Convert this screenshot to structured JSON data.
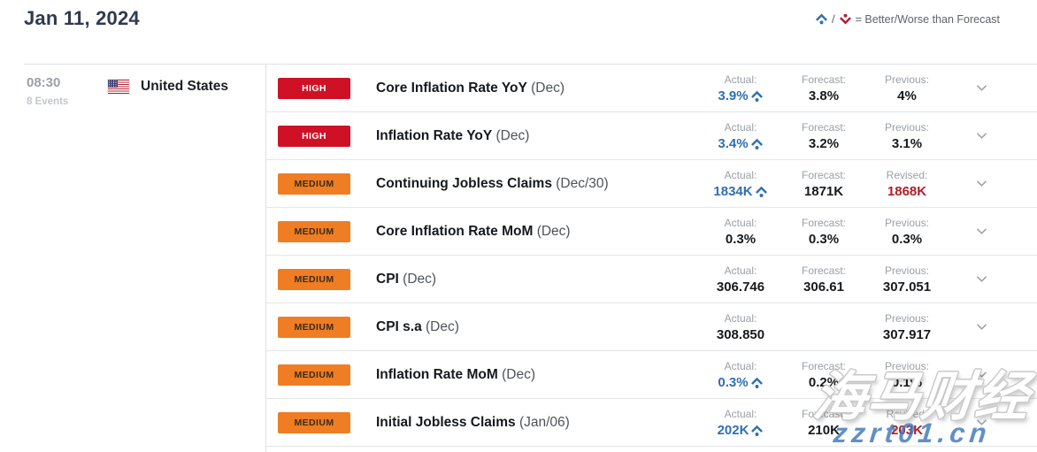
{
  "header": {
    "date": "Jan 11, 2024",
    "legend": {
      "separator": "/",
      "text": "= Better/Worse than Forecast"
    }
  },
  "group": {
    "time": "08:30",
    "events_count": "8 Events",
    "country": "United States"
  },
  "rows": [
    {
      "importance": "HIGH",
      "name": "Core Inflation Rate YoY",
      "period": "(Dec)",
      "values": [
        {
          "label": "Actual:",
          "value": "3.9%",
          "state": "better"
        },
        {
          "label": "Forecast:",
          "value": "3.8%"
        },
        {
          "label": "Previous:",
          "value": "4%"
        }
      ]
    },
    {
      "importance": "HIGH",
      "name": "Inflation Rate YoY",
      "period": "(Dec)",
      "values": [
        {
          "label": "Actual:",
          "value": "3.4%",
          "state": "better"
        },
        {
          "label": "Forecast:",
          "value": "3.2%"
        },
        {
          "label": "Previous:",
          "value": "3.1%"
        }
      ]
    },
    {
      "importance": "MEDIUM",
      "name": "Continuing Jobless Claims",
      "period": "(Dec/30)",
      "values": [
        {
          "label": "Actual:",
          "value": "1834K",
          "state": "better"
        },
        {
          "label": "Forecast:",
          "value": "1871K"
        },
        {
          "label": "Revised:",
          "value": "1868K",
          "state": "revised"
        }
      ]
    },
    {
      "importance": "MEDIUM",
      "name": "Core Inflation Rate MoM",
      "period": "(Dec)",
      "values": [
        {
          "label": "Actual:",
          "value": "0.3%"
        },
        {
          "label": "Forecast:",
          "value": "0.3%"
        },
        {
          "label": "Previous:",
          "value": "0.3%"
        }
      ]
    },
    {
      "importance": "MEDIUM",
      "name": "CPI",
      "period": "(Dec)",
      "values": [
        {
          "label": "Actual:",
          "value": "306.746"
        },
        {
          "label": "Forecast:",
          "value": "306.61"
        },
        {
          "label": "Previous:",
          "value": "307.051"
        }
      ]
    },
    {
      "importance": "MEDIUM",
      "name": "CPI s.a",
      "period": "(Dec)",
      "values": [
        {
          "label": "Actual:",
          "value": "308.850"
        },
        null,
        {
          "label": "Previous:",
          "value": "307.917"
        }
      ]
    },
    {
      "importance": "MEDIUM",
      "name": "Inflation Rate MoM",
      "period": "(Dec)",
      "values": [
        {
          "label": "Actual:",
          "value": "0.3%",
          "state": "better"
        },
        {
          "label": "Forecast:",
          "value": "0.2%"
        },
        {
          "label": "Previous:",
          "value": "0.1%"
        }
      ]
    },
    {
      "importance": "MEDIUM",
      "name": "Initial Jobless Claims",
      "period": "(Jan/06)",
      "values": [
        {
          "label": "Actual:",
          "value": "202K",
          "state": "better"
        },
        {
          "label": "Forecast:",
          "value": "210K"
        },
        {
          "label": "Revised:",
          "value": "203K",
          "state": "revised"
        }
      ]
    }
  ],
  "colors": {
    "better_blue": "#2e6fb4",
    "worse_red": "#b02030",
    "revised_red": "#b01e28",
    "high_badge": "#cf1126",
    "medium_badge": "#ef7d23",
    "title": "#2f3b4c"
  },
  "icons": {
    "better": "caret-up-with-dot",
    "worse": "caret-down-with-dot",
    "expand": "chevron-down"
  },
  "watermark": {
    "line1": "海马财经",
    "line2": "zzrt01.cn"
  }
}
